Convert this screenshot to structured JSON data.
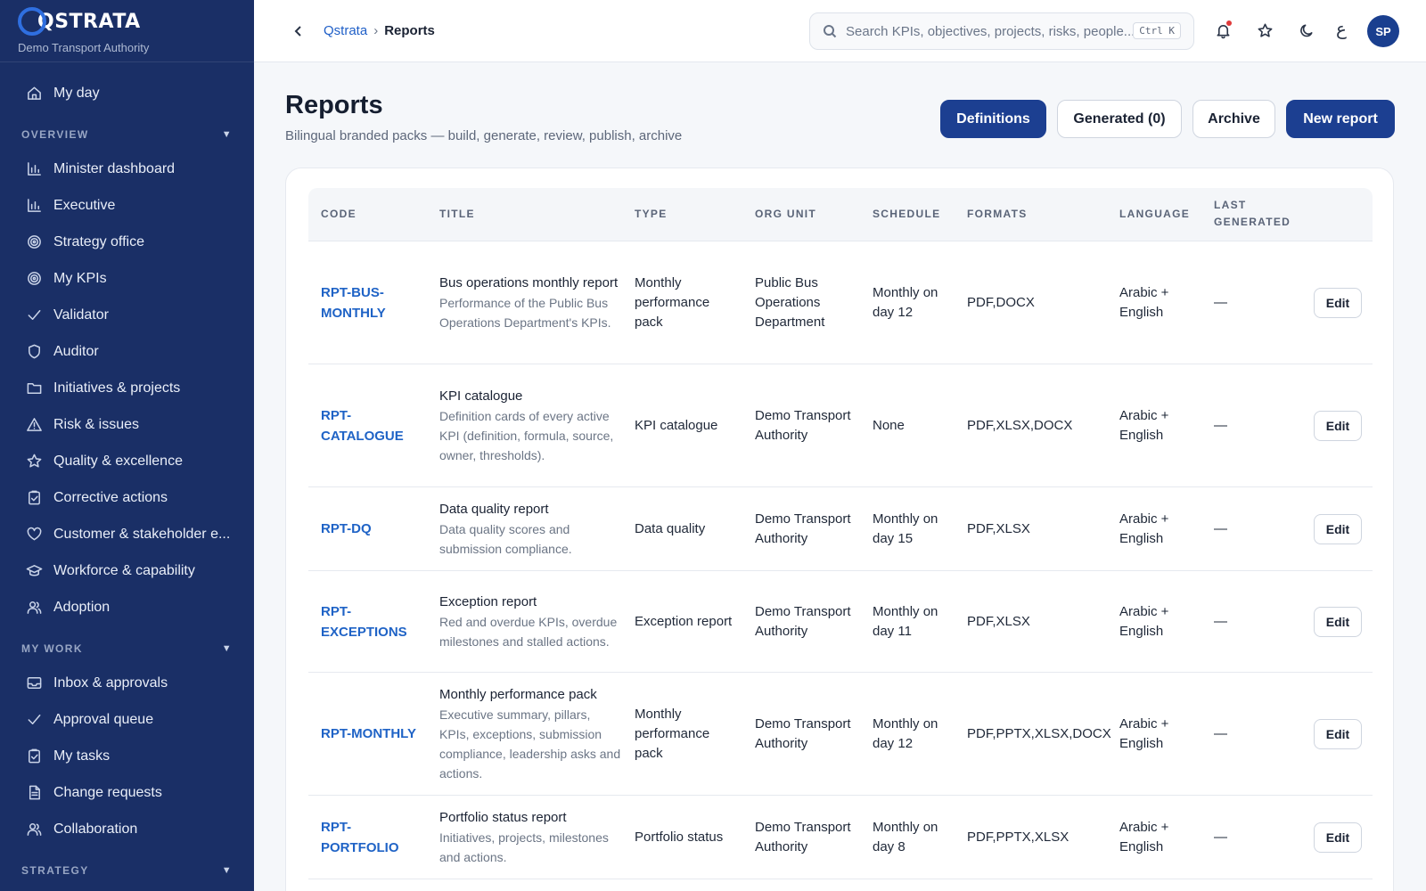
{
  "brand": {
    "logo_text": "QSTRATA",
    "org_name": "Demo Transport Authority"
  },
  "sidebar": {
    "top_items": [
      {
        "label": "My day",
        "icon": "home-icon"
      }
    ],
    "sections": [
      {
        "title": "OVERVIEW",
        "items": [
          {
            "label": "Minister dashboard",
            "icon": "bar-chart-icon"
          },
          {
            "label": "Executive",
            "icon": "bar-chart-icon"
          },
          {
            "label": "Strategy office",
            "icon": "target-icon"
          },
          {
            "label": "My KPIs",
            "icon": "target-icon"
          },
          {
            "label": "Validator",
            "icon": "check-icon"
          },
          {
            "label": "Auditor",
            "icon": "shield-icon"
          },
          {
            "label": "Initiatives & projects",
            "icon": "folder-icon"
          },
          {
            "label": "Risk & issues",
            "icon": "warning-icon"
          },
          {
            "label": "Quality & excellence",
            "icon": "star-icon"
          },
          {
            "label": "Corrective actions",
            "icon": "clipboard-check-icon"
          },
          {
            "label": "Customer & stakeholder e...",
            "icon": "heart-icon"
          },
          {
            "label": "Workforce & capability",
            "icon": "graduation-cap-icon"
          },
          {
            "label": "Adoption",
            "icon": "users-icon"
          }
        ]
      },
      {
        "title": "MY WORK",
        "items": [
          {
            "label": "Inbox & approvals",
            "icon": "inbox-icon"
          },
          {
            "label": "Approval queue",
            "icon": "check-icon"
          },
          {
            "label": "My tasks",
            "icon": "clipboard-check-icon"
          },
          {
            "label": "Change requests",
            "icon": "document-icon"
          },
          {
            "label": "Collaboration",
            "icon": "users-icon"
          }
        ]
      },
      {
        "title": "STRATEGY",
        "items": []
      }
    ]
  },
  "topbar": {
    "breadcrumb": {
      "root": "Qstrata",
      "separator": "›",
      "current": "Reports"
    },
    "search": {
      "placeholder": "Search KPIs, objectives, projects, risks, people...",
      "shortcut": "Ctrl K"
    },
    "lang_toggle": "ع",
    "avatar_initials": "SP"
  },
  "page": {
    "title": "Reports",
    "subtitle": "Bilingual branded packs — build, generate, review, publish, archive",
    "buttons": {
      "definitions": "Definitions",
      "generated": "Generated (0)",
      "archive": "Archive",
      "new_report": "New report"
    }
  },
  "table": {
    "headers": {
      "code": "CODE",
      "title": "TITLE",
      "type": "TYPE",
      "org_unit": "ORG UNIT",
      "schedule": "SCHEDULE",
      "formats": "FORMATS",
      "language": "LANGUAGE",
      "last_generated": "LAST GENERATED"
    },
    "edit_label": "Edit",
    "rows": [
      {
        "code": "RPT-BUS-MONTHLY",
        "title": "Bus operations monthly report",
        "description": "Performance of the Public Bus Operations Department's KPIs.",
        "type": "Monthly performance pack",
        "org_unit": "Public Bus Operations Department",
        "schedule": "Monthly on day 12",
        "formats": "PDF,DOCX",
        "language": "Arabic + English",
        "last_generated": "—"
      },
      {
        "code": "RPT-CATALOGUE",
        "title": "KPI catalogue",
        "description": "Definition cards of every active KPI (definition, formula, source, owner, thresholds).",
        "type": "KPI catalogue",
        "org_unit": "Demo Transport Authority",
        "schedule": "None",
        "formats": "PDF,XLSX,DOCX",
        "language": "Arabic + English",
        "last_generated": "—"
      },
      {
        "code": "RPT-DQ",
        "title": "Data quality report",
        "description": "Data quality scores and submission compliance.",
        "type": "Data quality",
        "org_unit": "Demo Transport Authority",
        "schedule": "Monthly on day 15",
        "formats": "PDF,XLSX",
        "language": "Arabic + English",
        "last_generated": "—"
      },
      {
        "code": "RPT-EXCEPTIONS",
        "title": "Exception report",
        "description": "Red and overdue KPIs, overdue milestones and stalled actions.",
        "type": "Exception report",
        "org_unit": "Demo Transport Authority",
        "schedule": "Monthly on day 11",
        "formats": "PDF,XLSX",
        "language": "Arabic + English",
        "last_generated": "—"
      },
      {
        "code": "RPT-MONTHLY",
        "title": "Monthly performance pack",
        "description": "Executive summary, pillars, KPIs, exceptions, submission compliance, leadership asks and actions.",
        "type": "Monthly performance pack",
        "org_unit": "Demo Transport Authority",
        "schedule": "Monthly on day 12",
        "formats": "PDF,PPTX,XLSX,DOCX",
        "language": "Arabic + English",
        "last_generated": "—"
      },
      {
        "code": "RPT-PORTFOLIO",
        "title": "Portfolio status report",
        "description": "Initiatives, projects, milestones and actions.",
        "type": "Portfolio status",
        "org_unit": "Demo Transport Authority",
        "schedule": "Monthly on day 8",
        "formats": "PDF,PPTX,XLSX",
        "language": "Arabic + English",
        "last_generated": "—"
      }
    ]
  },
  "colors": {
    "sidebar_bg": "#1a2f66",
    "primary": "#1c3f91",
    "link": "#1f63c6",
    "notification": "#e03a3a"
  }
}
